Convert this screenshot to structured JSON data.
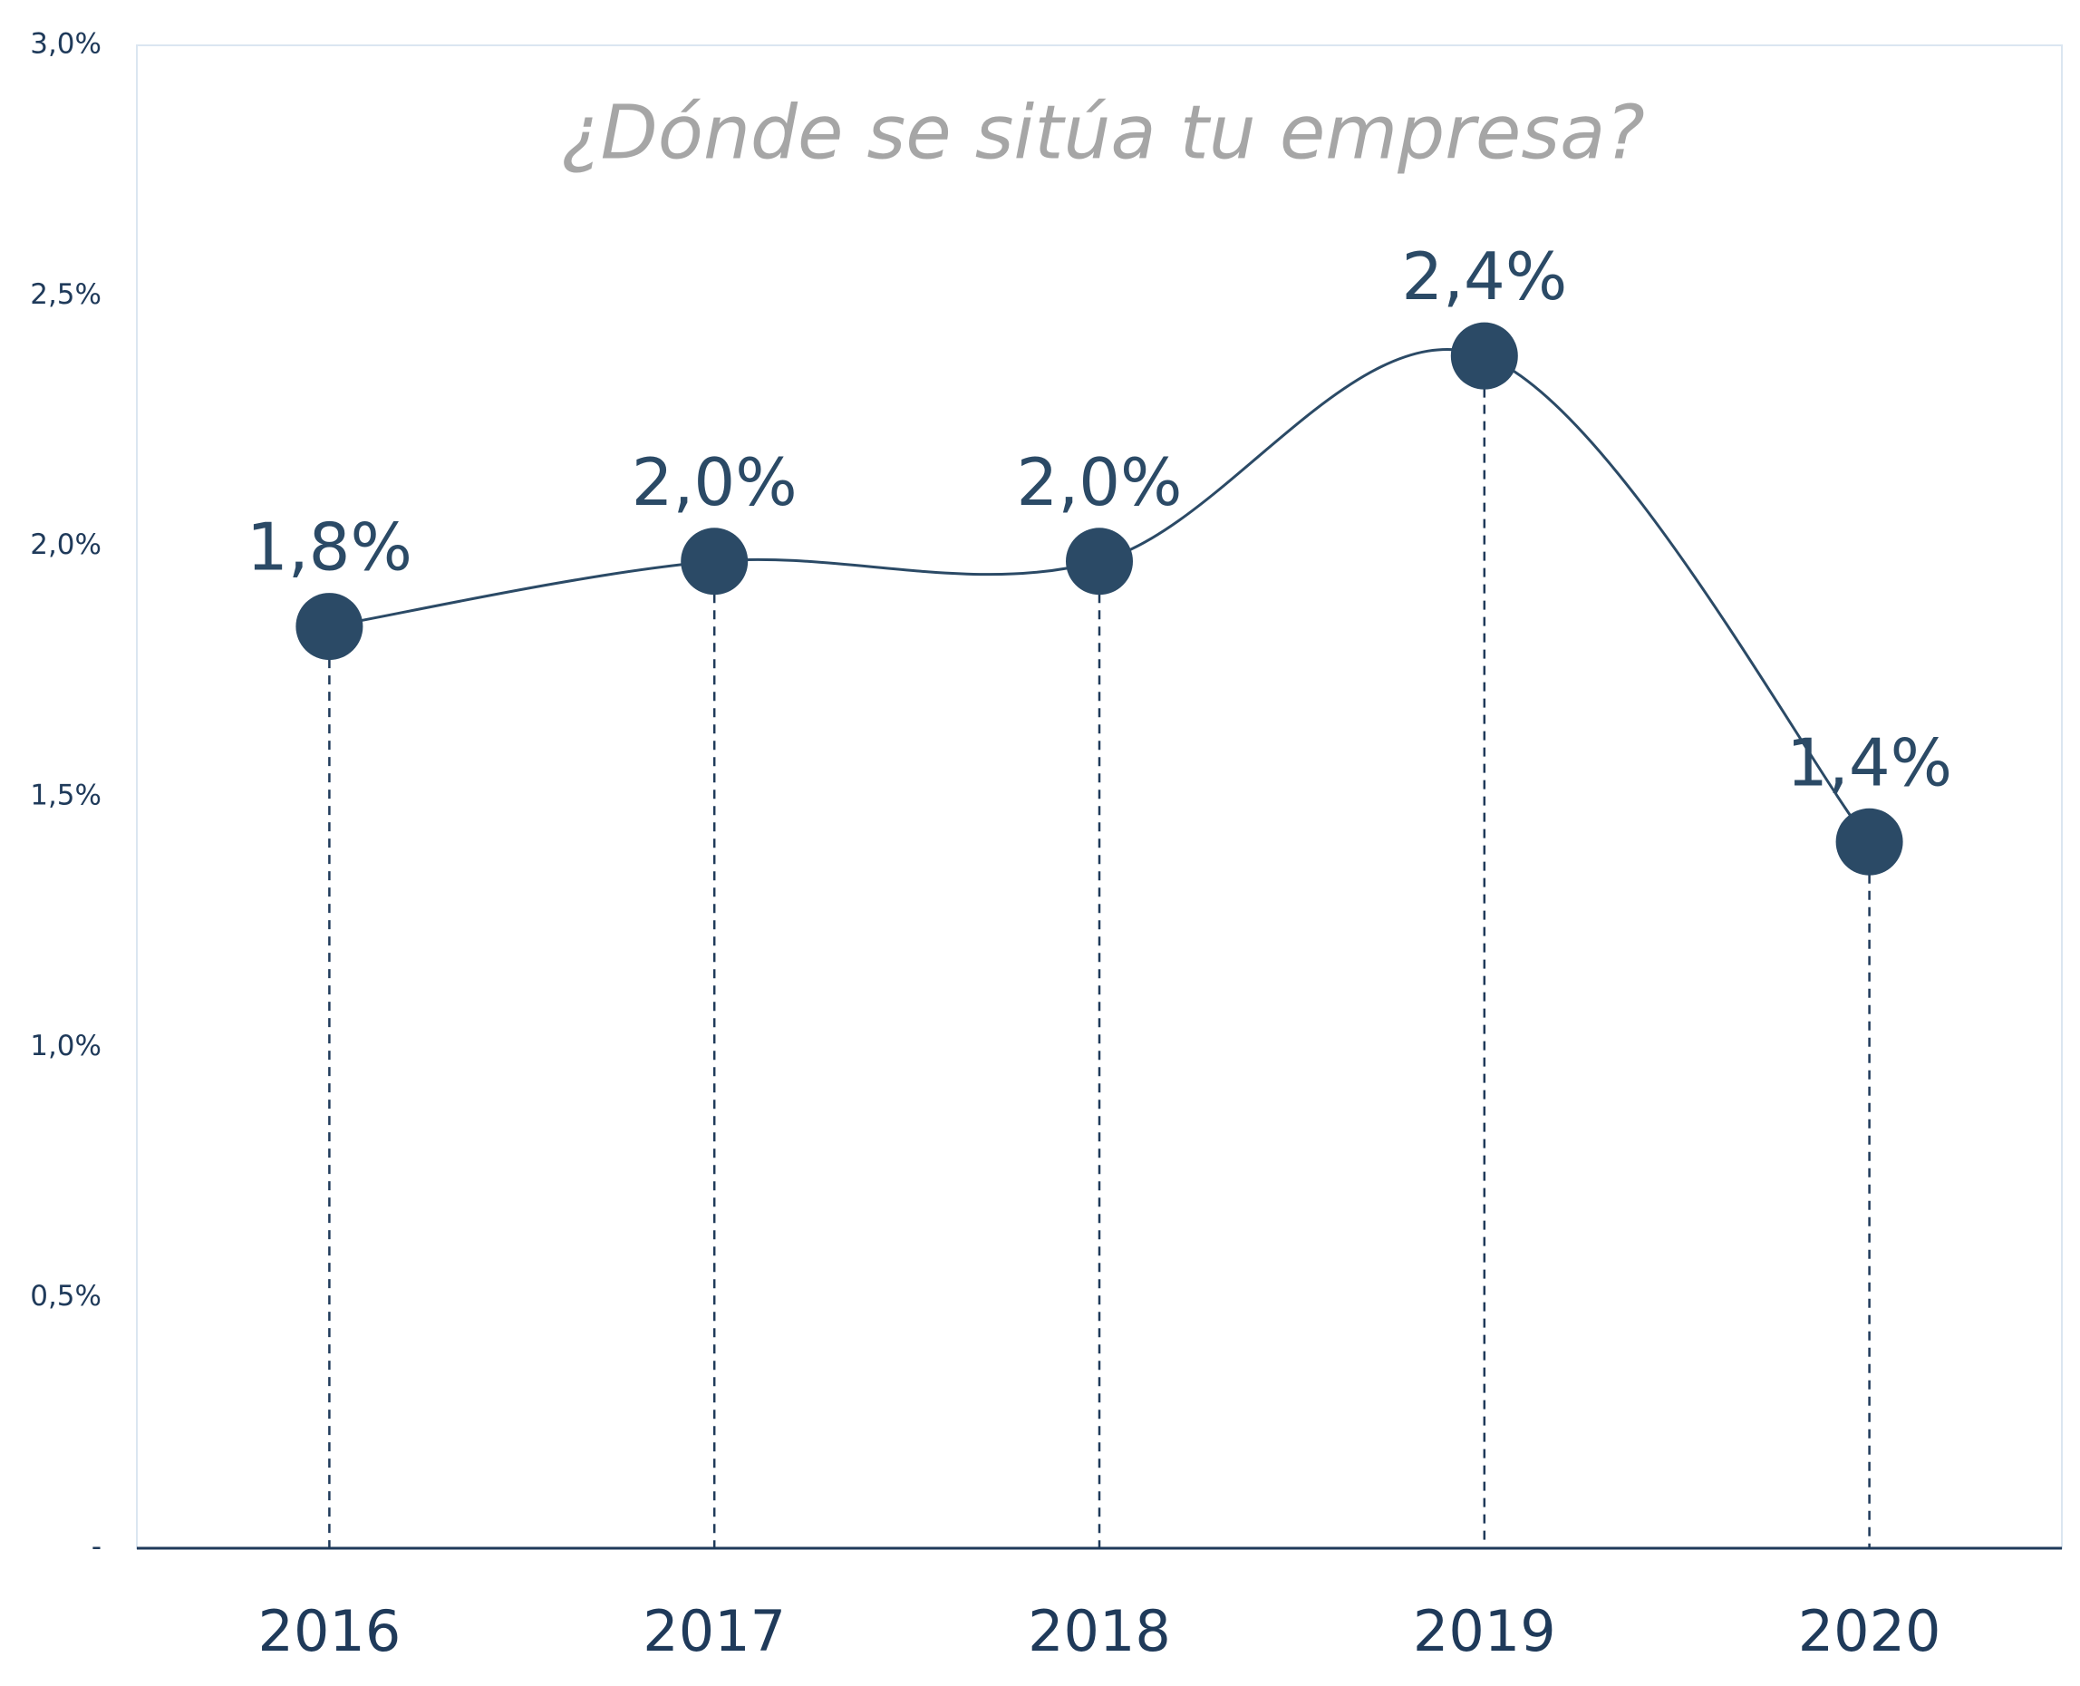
{
  "chart_data": {
    "type": "line",
    "title": "¿Dónde se sitúa tu empresa?",
    "categories": [
      "2016",
      "2017",
      "2018",
      "2019",
      "2020"
    ],
    "values": [
      1.84,
      1.97,
      1.97,
      2.38,
      1.41
    ],
    "value_labels": [
      "1,8%",
      "2,0%",
      "2,0%",
      "2,4%",
      "1,4%"
    ],
    "color": "#2b4a66",
    "ylim": [
      0,
      3
    ],
    "yticks": [
      {
        "value": 0,
        "label": "-"
      },
      {
        "value": 0.5,
        "label": "0,5%"
      },
      {
        "value": 1,
        "label": "1,0%"
      },
      {
        "value": 1.5,
        "label": "1,5%"
      },
      {
        "value": 2,
        "label": "2,0%"
      },
      {
        "value": 2.5,
        "label": "2,5%"
      },
      {
        "value": 3,
        "label": "3,0%"
      }
    ],
    "grid": false,
    "smooth": true,
    "drop_lines": true
  }
}
